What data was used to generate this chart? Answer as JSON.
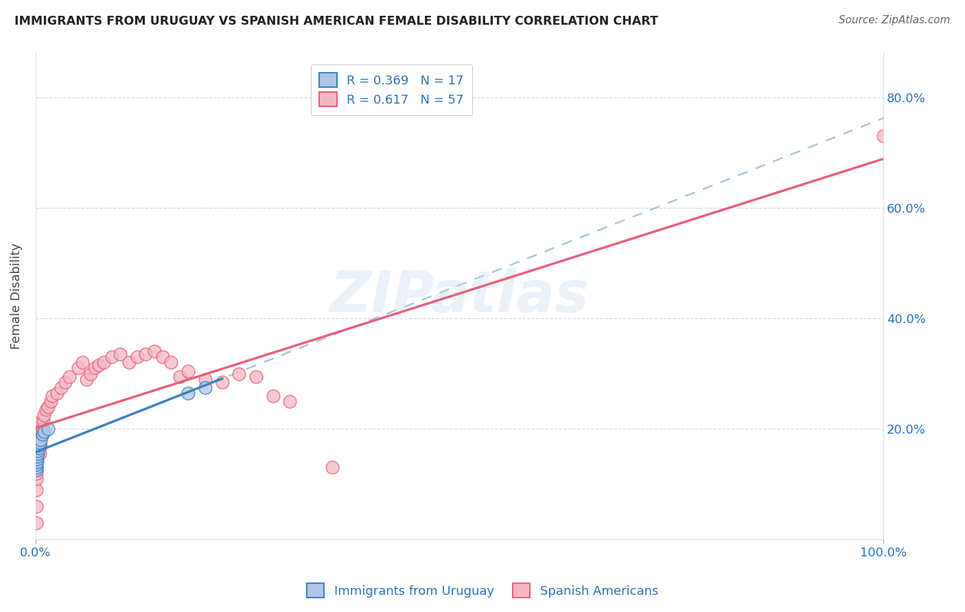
{
  "title": "IMMIGRANTS FROM URUGUAY VS SPANISH AMERICAN FEMALE DISABILITY CORRELATION CHART",
  "source": "Source: ZipAtlas.com",
  "ylabel": "Female Disability",
  "legend_1_label": "R = 0.369   N = 17",
  "legend_2_label": "R = 0.617   N = 57",
  "legend_1_color": "#aec6e8",
  "legend_2_color": "#f4b8c4",
  "line_1_color": "#4080c0",
  "line_2_color": "#e8607a",
  "dashed_line_color": "#90b8d8",
  "watermark": "ZIPatlas",
  "background_color": "#ffffff",
  "grid_color": "#c8c8c8",
  "uruguay_x": [
    0.001,
    0.001,
    0.001,
    0.002,
    0.002,
    0.002,
    0.003,
    0.003,
    0.004,
    0.004,
    0.005,
    0.006,
    0.008,
    0.01,
    0.015,
    0.18,
    0.2
  ],
  "uruguay_y": [
    0.125,
    0.13,
    0.135,
    0.14,
    0.145,
    0.15,
    0.155,
    0.16,
    0.165,
    0.17,
    0.175,
    0.18,
    0.19,
    0.195,
    0.2,
    0.265,
    0.275
  ],
  "spanish_x": [
    0.001,
    0.001,
    0.001,
    0.001,
    0.001,
    0.001,
    0.001,
    0.001,
    0.001,
    0.001,
    0.001,
    0.001,
    0.001,
    0.001,
    0.001,
    0.001,
    0.001,
    0.001,
    0.005,
    0.006,
    0.007,
    0.008,
    0.009,
    0.01,
    0.012,
    0.015,
    0.018,
    0.02,
    0.025,
    0.03,
    0.035,
    0.04,
    0.05,
    0.055,
    0.06,
    0.065,
    0.07,
    0.075,
    0.08,
    0.09,
    0.1,
    0.11,
    0.12,
    0.13,
    0.14,
    0.15,
    0.16,
    0.17,
    0.18,
    0.2,
    0.22,
    0.24,
    0.26,
    0.28,
    0.3,
    0.35,
    1.0
  ],
  "spanish_y": [
    0.03,
    0.06,
    0.09,
    0.11,
    0.12,
    0.13,
    0.145,
    0.155,
    0.16,
    0.165,
    0.17,
    0.175,
    0.18,
    0.185,
    0.19,
    0.195,
    0.2,
    0.21,
    0.155,
    0.17,
    0.185,
    0.2,
    0.215,
    0.225,
    0.235,
    0.24,
    0.25,
    0.26,
    0.265,
    0.275,
    0.285,
    0.295,
    0.31,
    0.32,
    0.29,
    0.3,
    0.31,
    0.315,
    0.32,
    0.33,
    0.335,
    0.32,
    0.33,
    0.335,
    0.34,
    0.33,
    0.32,
    0.295,
    0.305,
    0.29,
    0.285,
    0.3,
    0.295,
    0.26,
    0.25,
    0.13,
    0.73
  ],
  "xlim": [
    0,
    1.0
  ],
  "ylim": [
    0,
    0.88
  ],
  "yticks": [
    0.2,
    0.4,
    0.6,
    0.8
  ],
  "ytick_labels": [
    "20.0%",
    "40.0%",
    "60.0%",
    "80.0%"
  ],
  "xtick_positions": [
    0.0,
    1.0
  ],
  "xtick_labels": [
    "0.0%",
    "100.0%"
  ]
}
